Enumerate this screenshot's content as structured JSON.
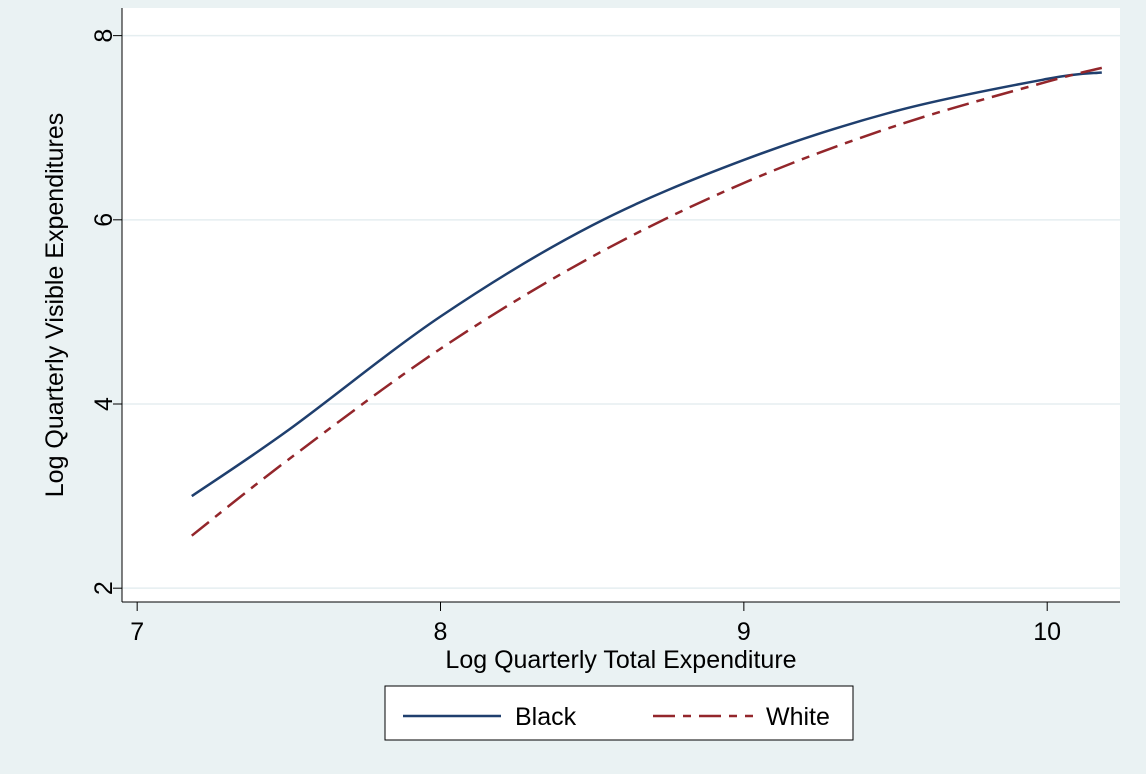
{
  "chart_data": {
    "type": "line",
    "title": "",
    "xlabel": "Log Quarterly Total Expenditure",
    "ylabel": "Log Quarterly Visible Expenditures",
    "xlim": [
      6.95,
      10.24
    ],
    "ylim": [
      1.85,
      8.3
    ],
    "xticks": [
      7,
      8,
      9,
      10
    ],
    "yticks": [
      2,
      4,
      6,
      8
    ],
    "grid": true,
    "legend_position": "bottom",
    "series": [
      {
        "name": "Black",
        "color": "#1f3f6e",
        "dash": "solid",
        "x": [
          7.18,
          7.5,
          8.0,
          8.5,
          9.0,
          9.5,
          10.0,
          10.18
        ],
        "y": [
          3.0,
          3.72,
          4.95,
          5.94,
          6.65,
          7.18,
          7.53,
          7.6
        ]
      },
      {
        "name": "White",
        "color": "#93262b",
        "dash": "longdash",
        "x": [
          7.18,
          7.5,
          8.0,
          8.5,
          9.0,
          9.5,
          10.0,
          10.18
        ],
        "y": [
          2.57,
          3.4,
          4.6,
          5.6,
          6.4,
          7.02,
          7.5,
          7.65
        ]
      }
    ]
  }
}
